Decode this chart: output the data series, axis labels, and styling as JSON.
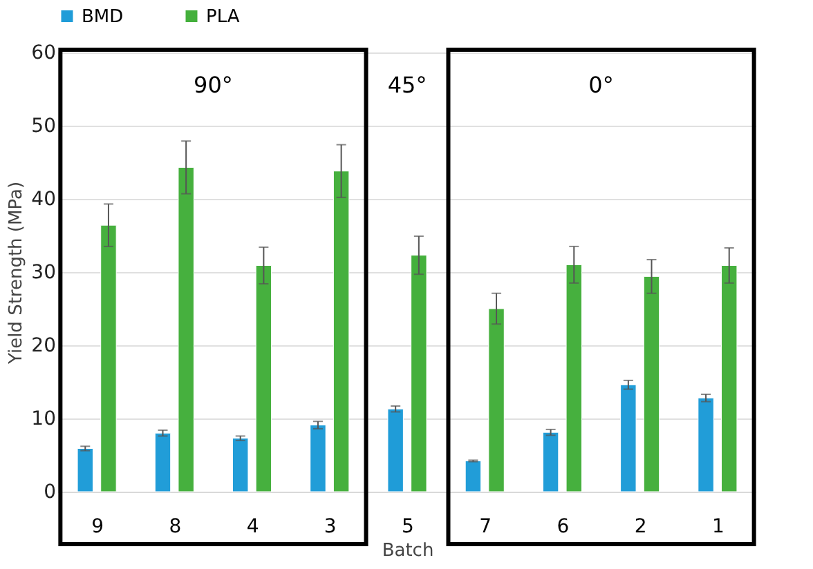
{
  "chart_data": {
    "type": "bar",
    "xlabel": "Batch",
    "ylabel": "Yield Strength (MPa)",
    "categories": [
      "9",
      "8",
      "4",
      "3",
      "5",
      "7",
      "6",
      "2",
      "1"
    ],
    "series": [
      {
        "name": "BMD",
        "color": "#1f9cd8",
        "values": [
          5.9,
          8.0,
          7.3,
          9.1,
          11.3,
          4.2,
          8.1,
          14.6,
          12.8
        ],
        "errors": [
          0.3,
          0.4,
          0.3,
          0.5,
          0.4,
          0.1,
          0.4,
          0.6,
          0.5
        ]
      },
      {
        "name": "PLA",
        "color": "#44b03c",
        "values": [
          36.4,
          44.3,
          30.9,
          43.8,
          32.3,
          25.0,
          31.0,
          29.4,
          30.9
        ],
        "errors": [
          2.9,
          3.6,
          2.5,
          3.6,
          2.6,
          2.1,
          2.5,
          2.3,
          2.4
        ]
      }
    ],
    "ylim": [
      0,
      60
    ],
    "yticks": [
      0,
      10,
      20,
      30,
      40,
      50,
      60
    ],
    "grid": "y",
    "legend": "top",
    "bands": [
      {
        "axis": "x",
        "from": "9",
        "to": "3",
        "label": "90°"
      },
      {
        "axis": "x",
        "from": "7",
        "to": "1",
        "label": "0°"
      }
    ],
    "annotations": [
      "45°"
    ]
  }
}
